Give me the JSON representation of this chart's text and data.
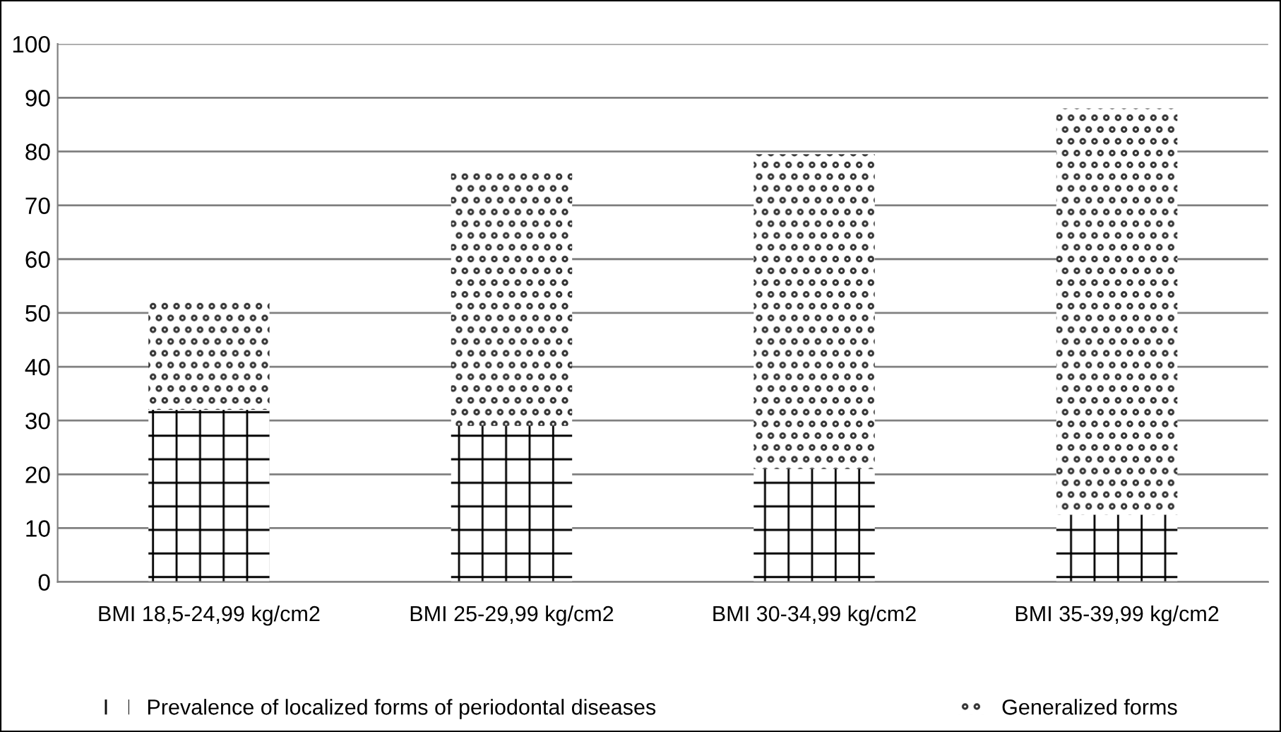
{
  "chart_data": {
    "type": "bar",
    "stacked": true,
    "categories": [
      "BMI 18,5-24,99 kg/cm2",
      "BMI 25-29,99 kg/cm2",
      "BMI 30-34,99 kg/cm2",
      "BMI 35-39,99 kg/cm2"
    ],
    "series": [
      {
        "name": "Prevalence of localized forms of periodontal diseases",
        "color": "#000000",
        "values": [
          32,
          29,
          21,
          12.5
        ]
      },
      {
        "name": "Generalized forms",
        "color": "#333333",
        "values": [
          20,
          47,
          58.5,
          75.5
        ]
      }
    ],
    "ylim": [
      0,
      100
    ],
    "yticks": [
      0,
      10,
      20,
      30,
      40,
      50,
      60,
      70,
      80,
      90,
      100
    ],
    "grid": "y",
    "legend": "bottom"
  }
}
